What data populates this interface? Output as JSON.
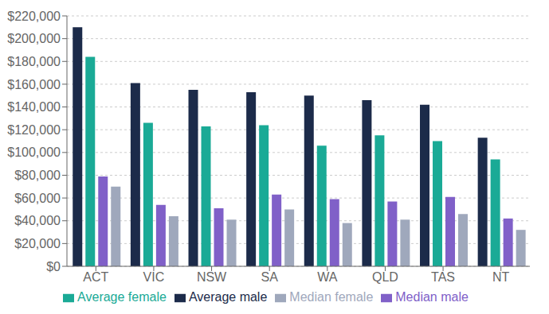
{
  "chart_data": {
    "type": "bar",
    "categories": [
      "ACT",
      "VIC",
      "NSW",
      "SA",
      "WA",
      "QLD",
      "TAS",
      "NT"
    ],
    "series": [
      {
        "name": "Average male",
        "color": "#1c2b4a",
        "values": [
          210000,
          161000,
          155000,
          153000,
          150000,
          146000,
          142000,
          113000
        ]
      },
      {
        "name": "Average female",
        "color": "#1aaa96",
        "values": [
          184000,
          126000,
          123000,
          124000,
          106000,
          115000,
          110000,
          94000
        ]
      },
      {
        "name": "Median male",
        "color": "#8060c8",
        "values": [
          79000,
          54000,
          51000,
          63000,
          59000,
          57000,
          61000,
          42000
        ]
      },
      {
        "name": "Median female",
        "color": "#9fa8bc",
        "values": [
          70000,
          44000,
          41000,
          50000,
          38000,
          41000,
          46000,
          32000
        ]
      }
    ],
    "ylim": [
      0,
      220000
    ],
    "yticks": [
      {
        "value": 0,
        "label": "$0"
      },
      {
        "value": 20000,
        "label": "$20,000"
      },
      {
        "value": 40000,
        "label": "$40,000"
      },
      {
        "value": 60000,
        "label": "$60,000"
      },
      {
        "value": 80000,
        "label": "$80,000"
      },
      {
        "value": 100000,
        "label": "$100,000"
      },
      {
        "value": 120000,
        "label": "$120,000"
      },
      {
        "value": 140000,
        "label": "$140,000"
      },
      {
        "value": 160000,
        "label": "$160,000"
      },
      {
        "value": 180000,
        "label": "$180,000"
      },
      {
        "value": 200000,
        "label": "$200,000"
      },
      {
        "value": 220000,
        "label": "$220,000"
      }
    ],
    "grid": true,
    "legend": "bottom"
  }
}
